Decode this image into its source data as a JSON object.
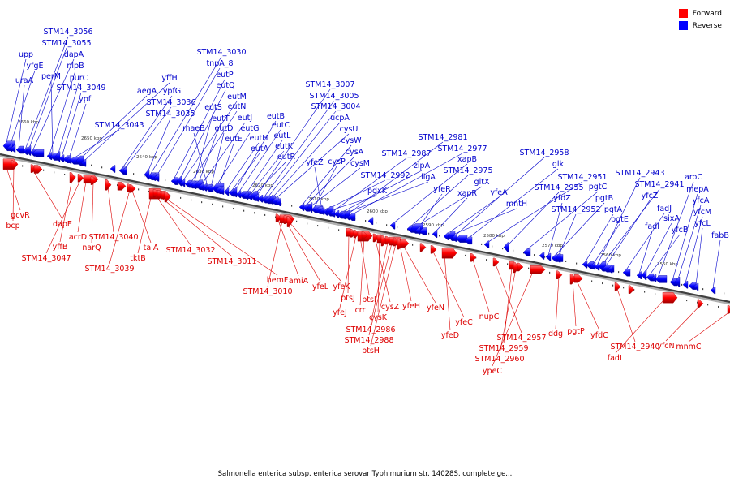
{
  "legend": {
    "forward_label": "Forward",
    "reverse_label": "Reverse",
    "forward_color": "#ff0000",
    "reverse_color": "#0000ff"
  },
  "caption": "Salmonella enterica subsp. enterica serovar Typhimurium str. 14028S, complete ge...",
  "scale": {
    "unit": "kbp",
    "ticks": [
      2660,
      2650,
      2640,
      2630,
      2620,
      2610,
      2600,
      2590,
      2580,
      2570,
      2560,
      2550
    ]
  },
  "reverse_genes": [
    "upp",
    "yfgE",
    "uraA",
    "STM14_3056",
    "STM14_3055",
    "dapA",
    "nlpB",
    "perM",
    "purC",
    "STM14_3049",
    "ypfI",
    "STM14_3043",
    "aegA",
    "yffH",
    "ypfG",
    "STM14_3036",
    "STM14_3035",
    "STM14_3030",
    "tnpA_8",
    "eutP",
    "eutQ",
    "eutM",
    "eutN",
    "eutS",
    "eutT",
    "eutJ",
    "maeB",
    "eutD",
    "eutG",
    "eutE",
    "eutH",
    "eutA",
    "eutB",
    "eutC",
    "eutL",
    "eutK",
    "eutR",
    "STM14_3007",
    "STM14_3005",
    "STM14_3004",
    "ucpA",
    "cysU",
    "cysW",
    "cysA",
    "cysM",
    "cysP",
    "yfeZ",
    "STM14_2992",
    "pdxK",
    "STM14_2987",
    "zipA",
    "ligA",
    "STM14_2981",
    "STM14_2977",
    "xapB",
    "STM14_2975",
    "gltX",
    "yfeR",
    "xapR",
    "yfeA",
    "mntH",
    "STM14_2958",
    "glk",
    "STM14_2951",
    "STM14_2955",
    "pgtC",
    "yfdZ",
    "pgtB",
    "STM14_2952",
    "pgtA",
    "pgtE",
    "STM14_2943",
    "STM14_2941",
    "yfcZ",
    "fadJ",
    "fadI",
    "sixA",
    "yfcB",
    "aroC",
    "mepA",
    "yfcA",
    "yfcM",
    "yfcL",
    "fabB"
  ],
  "forward_genes": [
    "gcvR",
    "bcp",
    "dapE",
    "yffB",
    "STM14_3047",
    "acrD",
    "narQ",
    "STM14_3040",
    "STM14_3039",
    "talA",
    "tktB",
    "STM14_3032",
    "STM14_3011",
    "hemF",
    "amiA",
    "STM14_3010",
    "yfeL",
    "yfeK",
    "ptsJ",
    "yfeJ",
    "ptsI",
    "crr",
    "cysZ",
    "cysK",
    "STM14_2986",
    "STM14_2988",
    "ptsH",
    "yfeH",
    "yfeN",
    "yfeC",
    "yfeD",
    "nupC",
    "STM14_2957",
    "STM14_2959",
    "STM14_2960",
    "ypeC",
    "ddg",
    "pgtP",
    "yfdC",
    "STM14_2940",
    "fadL",
    "yfcN",
    "mnmC"
  ]
}
